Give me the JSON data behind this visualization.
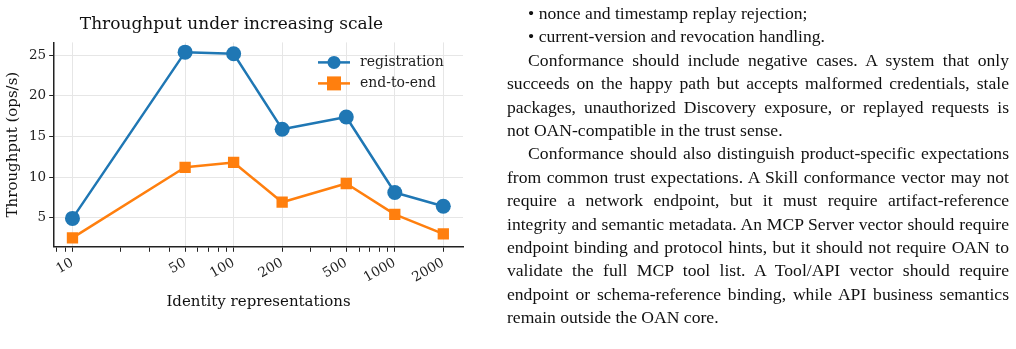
{
  "chart_data": {
    "type": "line",
    "title": "Throughput under increasing scale",
    "xlabel": "Identity representations",
    "ylabel": "Throughput (ops/s)",
    "x": [
      10,
      50,
      100,
      200,
      500,
      1000,
      2000
    ],
    "series": [
      {
        "name": "registration",
        "color": "#1f77b4",
        "marker": "circle",
        "values": [
          4.9,
          25.4,
          25.2,
          15.9,
          17.4,
          8.1,
          6.4
        ]
      },
      {
        "name": "end-to-end",
        "color": "#ff7f0e",
        "marker": "square",
        "values": [
          2.5,
          11.2,
          11.8,
          6.9,
          9.2,
          5.4,
          3.0
        ]
      }
    ],
    "log": "x",
    "xlim": [
      7.7,
      2650
    ],
    "xticks": [
      {
        "value": 8,
        "label": null
      },
      {
        "value": 9,
        "label": null
      },
      10,
      {
        "value": 20,
        "label": null
      },
      {
        "value": 30,
        "label": null
      },
      {
        "value": 40,
        "label": null
      },
      50,
      {
        "value": 60,
        "label": null
      },
      {
        "value": 70,
        "label": null
      },
      {
        "value": 80,
        "label": null
      },
      {
        "value": 90,
        "label": null
      },
      100,
      200,
      {
        "value": 300,
        "label": null
      },
      {
        "value": 400,
        "label": null
      },
      500,
      {
        "value": 600,
        "label": null
      },
      {
        "value": 700,
        "label": null
      },
      {
        "value": 800,
        "label": null
      },
      {
        "value": 900,
        "label": null
      },
      1000,
      2000
    ],
    "ylim": [
      1.4,
      26.6
    ],
    "yticks": [
      5,
      10,
      15,
      20,
      25
    ],
    "grid": true,
    "legend": "top right",
    "line_style": "solid",
    "annotations": [
      "• nonce and timestamp replay rejection;",
      "• current-version and revocation handling.",
      "Conformance should include negative cases. A system that only succeeds on the happy path but accepts malformed credentials, stale packages, unauthorized Discovery exposure, or replayed requests is not OAN-compatible in the trust sense.",
      "Conformance should also distinguish product-specific expectations from common trust expectations. A Skill conformance vector may not require a network endpoint, but it must require artifact-reference integrity and semantic metadata. An MCP Server vector should require endpoint binding and protocol hints, but it should not require OAN to validate the full MCP tool list. A Tool/API vector should require endpoint or schema-reference binding, while API business semantics remain outside the OAN core."
    ]
  }
}
